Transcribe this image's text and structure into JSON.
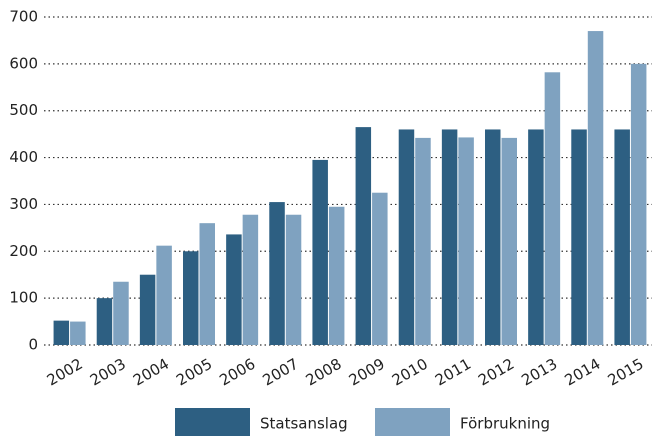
{
  "chart_data": {
    "type": "bar",
    "categories": [
      "2002",
      "2003",
      "2004",
      "2005",
      "2006",
      "2007",
      "2008",
      "2009",
      "2010",
      "2011",
      "2012",
      "2013",
      "2014",
      "2015"
    ],
    "series": [
      {
        "name": "Statsanslag",
        "color": "#2d5f82",
        "values": [
          52,
          100,
          150,
          200,
          236,
          305,
          395,
          465,
          460,
          460,
          460,
          460,
          460,
          460
        ]
      },
      {
        "name": "Förbrukning",
        "color": "#7fa2c0",
        "values": [
          50,
          135,
          212,
          260,
          278,
          278,
          295,
          325,
          442,
          443,
          442,
          582,
          670,
          600
        ]
      }
    ],
    "ylim": [
      0,
      700
    ],
    "yticks": [
      0,
      100,
      200,
      300,
      400,
      500,
      600,
      700
    ],
    "grid": true,
    "legend": "bottom"
  }
}
